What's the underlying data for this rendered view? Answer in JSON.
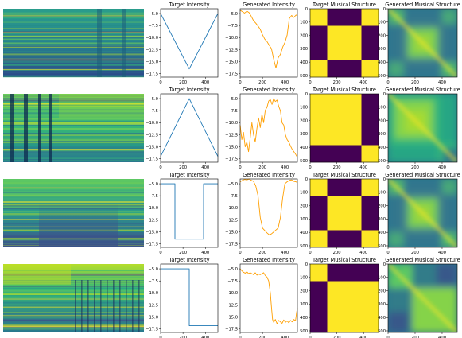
{
  "chart_data": {
    "type": "figure-grid",
    "columns": [
      "spectrogram",
      "Target Intensity",
      "Generated Intensity",
      "Target Musical Structure",
      "Generated Musical Structure"
    ],
    "titles": {
      "target_intensity": "Target Intensity",
      "generated_intensity": "Generated Intensity",
      "target_structure": "Target Musical Structure",
      "generated_structure": "Generated Musical Structure"
    },
    "intensity_axis": {
      "xlim": [
        0,
        512
      ],
      "ylim": [
        -18.2,
        -4.0
      ],
      "xticks": [
        0,
        200,
        400
      ],
      "yticks": [
        -5.0,
        -7.5,
        -10.0,
        -12.5,
        -15.0,
        -17.5
      ],
      "ytick_labels": [
        "−5.0",
        "−7.5",
        "−10.0",
        "−12.5",
        "−15.0",
        "−17.5"
      ]
    },
    "structure_axis": {
      "xlim": [
        0,
        512
      ],
      "ylim": [
        512,
        0
      ],
      "xticks": [
        0,
        200,
        400
      ],
      "yticks": [
        0,
        100,
        200,
        300,
        400,
        500
      ]
    },
    "colors": {
      "target_line": "#1f77b4",
      "generated_line": "#ff9f00",
      "struct_high": "#fde725",
      "struct_low": "#440154",
      "frame": "#000000"
    },
    "rows": [
      {
        "spectrogram_style": "banded-dark-low",
        "target_intensity": {
          "type": "line",
          "x": [
            0,
            256,
            512
          ],
          "y": [
            -5.0,
            -16.5,
            -5.0
          ]
        },
        "generated_intensity": {
          "type": "line",
          "x": [
            0,
            20,
            40,
            60,
            80,
            100,
            120,
            140,
            160,
            180,
            200,
            220,
            240,
            260,
            280,
            300,
            320,
            340,
            360,
            380,
            400,
            420,
            440,
            460,
            480,
            500,
            512
          ],
          "y": [
            -4.3,
            -4.6,
            -4.9,
            -4.5,
            -4.8,
            -5.6,
            -6.5,
            -7.0,
            -7.6,
            -8.3,
            -9.4,
            -10.3,
            -10.8,
            -11.6,
            -12.3,
            -14.5,
            -16.3,
            -14.2,
            -13.5,
            -12.0,
            -11.0,
            -9.5,
            -6.0,
            -5.4,
            -5.8,
            -5.3,
            -5.5
          ]
        },
        "target_structure": {
          "type": "heatmap",
          "segments": [
            [
              0,
              128
            ],
            [
              128,
              384
            ],
            [
              384,
              512
            ]
          ],
          "pattern": [
            [
              1,
              0,
              1
            ],
            [
              0,
              1,
              0
            ],
            [
              1,
              0,
              1
            ]
          ]
        },
        "generated_structure_style": "blurred-checker-3"
      },
      {
        "spectrogram_style": "stripes-left",
        "target_intensity": {
          "type": "line",
          "x": [
            0,
            256,
            512
          ],
          "y": [
            -17.0,
            -5.0,
            -17.0
          ]
        },
        "generated_intensity": {
          "type": "line",
          "x": [
            0,
            15,
            30,
            45,
            60,
            75,
            90,
            105,
            120,
            135,
            150,
            165,
            180,
            195,
            210,
            225,
            240,
            255,
            270,
            285,
            300,
            315,
            330,
            345,
            360,
            375,
            390,
            405,
            420,
            435,
            450,
            465,
            480,
            495,
            512
          ],
          "y": [
            -10.5,
            -13.5,
            -12.0,
            -15.0,
            -14.0,
            -16.0,
            -13.2,
            -10.0,
            -12.5,
            -14.0,
            -11.2,
            -9.0,
            -11.0,
            -8.2,
            -10.0,
            -7.4,
            -6.8,
            -5.5,
            -5.2,
            -6.2,
            -5.0,
            -5.6,
            -5.3,
            -6.6,
            -7.5,
            -10.0,
            -10.5,
            -12.5,
            -13.5,
            -14.0,
            -14.8,
            -15.5,
            -16.0,
            -16.5,
            -17.2
          ]
        },
        "target_structure": {
          "type": "heatmap",
          "segments": [
            [
              0,
              384
            ],
            [
              384,
              512
            ]
          ],
          "pattern": [
            [
              1,
              0
            ],
            [
              0,
              1
            ]
          ]
        },
        "generated_structure_style": "blurred-two-block"
      },
      {
        "spectrogram_style": "dark-middle",
        "target_intensity": {
          "type": "line",
          "x": [
            0,
            128,
            128,
            384,
            384,
            512
          ],
          "y": [
            -5.0,
            -5.0,
            -16.5,
            -16.5,
            -5.0,
            -5.0
          ]
        },
        "generated_intensity": {
          "type": "line",
          "x": [
            0,
            20,
            40,
            60,
            80,
            100,
            120,
            140,
            160,
            180,
            200,
            220,
            240,
            260,
            280,
            300,
            320,
            340,
            360,
            380,
            400,
            420,
            440,
            460,
            480,
            500,
            512
          ],
          "y": [
            -4.6,
            -4.3,
            -4.1,
            -4.2,
            -4.0,
            -4.3,
            -4.5,
            -5.5,
            -7.5,
            -12.0,
            -14.2,
            -14.7,
            -15.2,
            -15.6,
            -15.4,
            -15.0,
            -14.6,
            -14.2,
            -12.0,
            -8.0,
            -5.0,
            -4.6,
            -4.3,
            -4.2,
            -4.5,
            -4.6,
            -4.8
          ]
        },
        "target_structure": {
          "type": "heatmap",
          "segments": [
            [
              0,
              128
            ],
            [
              128,
              384
            ],
            [
              384,
              512
            ]
          ],
          "pattern": [
            [
              1,
              0,
              1
            ],
            [
              0,
              1,
              0
            ],
            [
              1,
              0,
              1
            ]
          ]
        },
        "generated_structure_style": "blurred-checker-3"
      },
      {
        "spectrogram_style": "bright-left",
        "target_intensity": {
          "type": "line",
          "x": [
            0,
            256,
            256,
            512
          ],
          "y": [
            -5.0,
            -5.0,
            -16.8,
            -16.8
          ]
        },
        "generated_intensity": {
          "type": "line",
          "x": [
            0,
            15,
            30,
            45,
            60,
            75,
            90,
            105,
            120,
            135,
            150,
            165,
            180,
            195,
            210,
            225,
            240,
            255,
            270,
            280,
            290,
            300,
            315,
            330,
            345,
            360,
            375,
            390,
            405,
            420,
            435,
            450,
            465,
            480,
            495,
            505,
            512
          ],
          "y": [
            -5.0,
            -5.4,
            -5.7,
            -5.9,
            -5.6,
            -6.0,
            -5.8,
            -6.0,
            -6.2,
            -5.8,
            -6.3,
            -6.1,
            -6.2,
            -6.0,
            -5.8,
            -6.4,
            -6.7,
            -7.5,
            -10.0,
            -13.0,
            -15.5,
            -16.1,
            -15.5,
            -16.4,
            -15.7,
            -16.0,
            -16.3,
            -15.6,
            -16.1,
            -15.8,
            -16.2,
            -15.7,
            -16.0,
            -15.5,
            -15.8,
            -14.0,
            -13.2
          ]
        },
        "target_structure": {
          "type": "heatmap",
          "segments": [
            [
              0,
              128
            ],
            [
              128,
              512
            ]
          ],
          "pattern": [
            [
              1,
              0
            ],
            [
              0,
              1
            ]
          ]
        },
        "generated_structure_style": "blurred-two-block-corner"
      }
    ]
  }
}
